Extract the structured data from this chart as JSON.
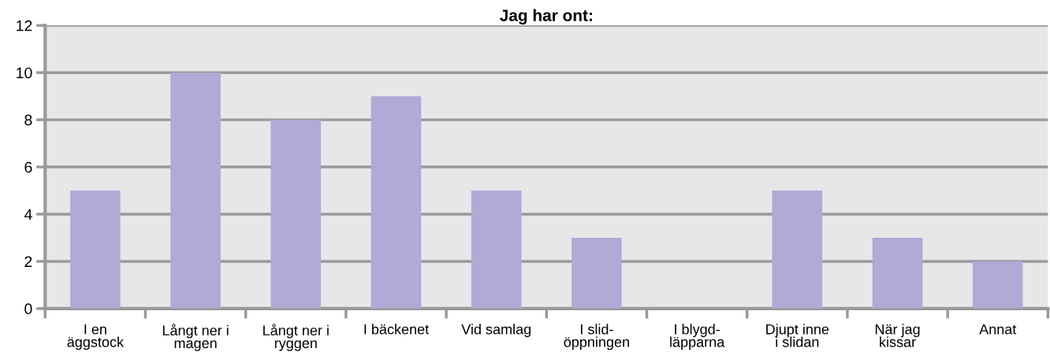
{
  "chart_data": {
    "type": "bar",
    "title": "Jag har ont:",
    "categories": [
      "I en\näggstock",
      "Långt ner i\nmagen",
      "Långt ner i\nryggen",
      "I bäckenet",
      "Vid samlag",
      "I slid-\nöppningen",
      "I blygd-\nläpparna",
      "Djupt inne\ni slidan",
      "När jag\nkissar",
      "Annat"
    ],
    "values": [
      5,
      10,
      8,
      9,
      5,
      3,
      0,
      5,
      3,
      2
    ],
    "color": "#afaad6",
    "ylim": [
      0,
      12
    ],
    "yticks": [
      0,
      2,
      4,
      6,
      8,
      10,
      12
    ],
    "grid": "y"
  }
}
